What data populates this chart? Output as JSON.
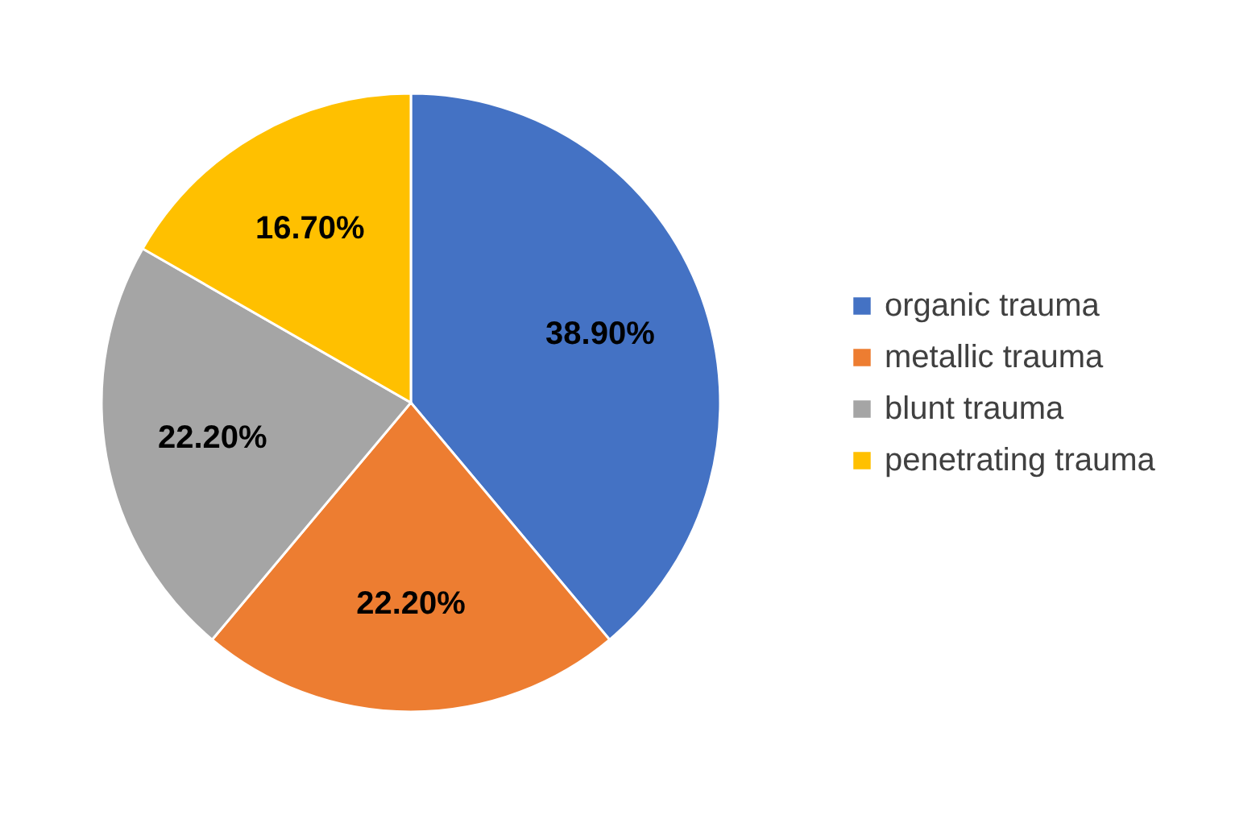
{
  "chart_data": {
    "type": "pie",
    "categories": [
      "organic trauma",
      "metallic trauma",
      "blunt trauma",
      "penetrating trauma"
    ],
    "values": [
      38.9,
      22.2,
      22.2,
      16.7
    ],
    "colors": [
      "#4472c4",
      "#ed7d31",
      "#a5a5a5",
      "#ffc000"
    ],
    "value_labels": [
      "38.90%",
      "22.20%",
      "22.20%",
      "16.70%"
    ],
    "legend": "right"
  }
}
